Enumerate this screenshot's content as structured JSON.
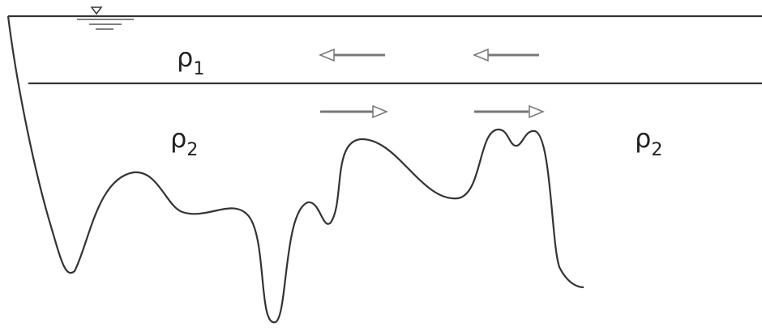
{
  "labels": [
    {
      "symbol": "ρ",
      "subscript": "1"
    },
    {
      "symbol": "ρ",
      "subscript": "2"
    },
    {
      "symbol": "ρ",
      "subscript": "2"
    }
  ]
}
